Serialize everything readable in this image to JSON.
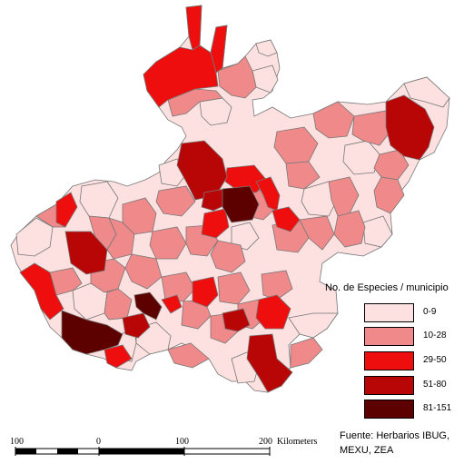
{
  "legend": {
    "title": "No. de Especies / municipio",
    "items": [
      {
        "label": "0-9",
        "color": "#fde0e0"
      },
      {
        "label": "10-28",
        "color": "#f08a8a"
      },
      {
        "label": "29-50",
        "color": "#ee0e0e"
      },
      {
        "label": "51-80",
        "color": "#b80606"
      },
      {
        "label": "81-151",
        "color": "#5c0000"
      }
    ]
  },
  "scale_bar": {
    "labels": [
      "100",
      "0",
      "100",
      "200"
    ],
    "unit": "Kilometers"
  },
  "source": {
    "line1": "Fuente: Herbarios IBUG,",
    "line2": "MEXU, ZEA"
  }
}
